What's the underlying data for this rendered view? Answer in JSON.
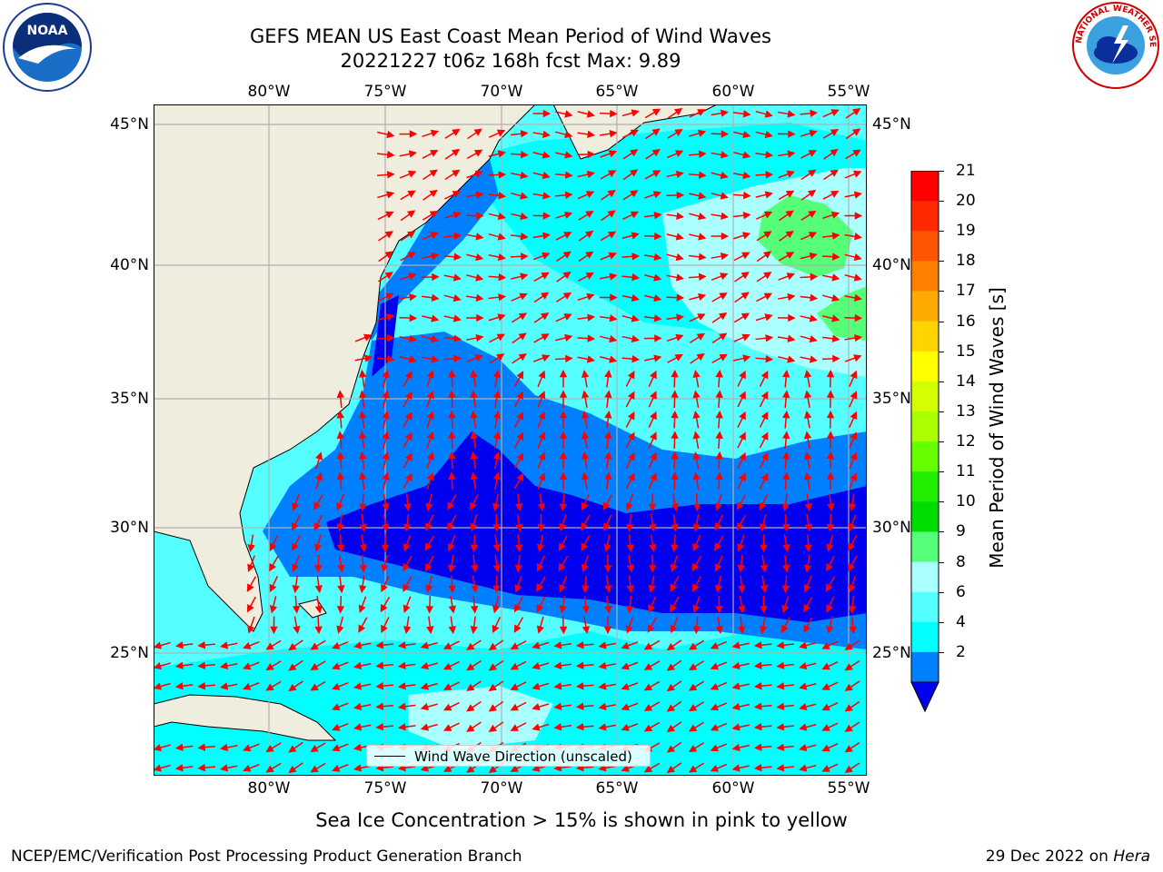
{
  "header": {
    "title_line1": "GEFS MEAN US East Coast Mean Period of Wind Waves",
    "title_line2": "20221227 t06z 168h fcst   Max: 9.89"
  },
  "logos": {
    "left": "noaa-logo",
    "right": "national-weather-service-logo"
  },
  "axes": {
    "lon_labels": [
      "80°W",
      "75°W",
      "70°W",
      "65°W",
      "60°W",
      "55°W"
    ],
    "lat_labels": [
      "45°N",
      "40°N",
      "35°N",
      "30°N",
      "25°N"
    ]
  },
  "colorbar": {
    "label": "Mean Period of Wind Waves [s]",
    "ticks": [
      "21",
      "20",
      "19",
      "18",
      "17",
      "16",
      "15",
      "14",
      "13",
      "12",
      "11",
      "10",
      "9",
      "8",
      "6",
      "4",
      "2"
    ],
    "colors": [
      "#ff0000",
      "#ff2a00",
      "#ff5500",
      "#ff8000",
      "#ffaa00",
      "#ffd400",
      "#ffff00",
      "#d4ff00",
      "#aaff00",
      "#66ff00",
      "#22ee00",
      "#00dd00",
      "#55ff77",
      "#aaffff",
      "#55ffff",
      "#00ffff",
      "#0080ff"
    ],
    "extend_color": "#0000ee"
  },
  "legend": {
    "label": "Wind Wave Direction (unscaled)"
  },
  "note": "Sea Ice Concentration > 15% is shown in pink to yellow",
  "footer": {
    "left": "NCEP/EMC/Verification Post Processing Product Generation Branch",
    "right_date": "29 Dec 2022 on ",
    "right_machine": "Hera"
  },
  "map_colors": {
    "land": "#efedde",
    "ocean_2_4": "#0080ff",
    "ocean_lt2": "#0000ee",
    "ocean_4_6": "#00ffff",
    "ocean_6_8": "#55ffff",
    "ocean_8_9": "#aaffff",
    "ocean_9_10": "#55ff77",
    "arrow": "#ff0000",
    "grid": "#b0b0b0"
  }
}
